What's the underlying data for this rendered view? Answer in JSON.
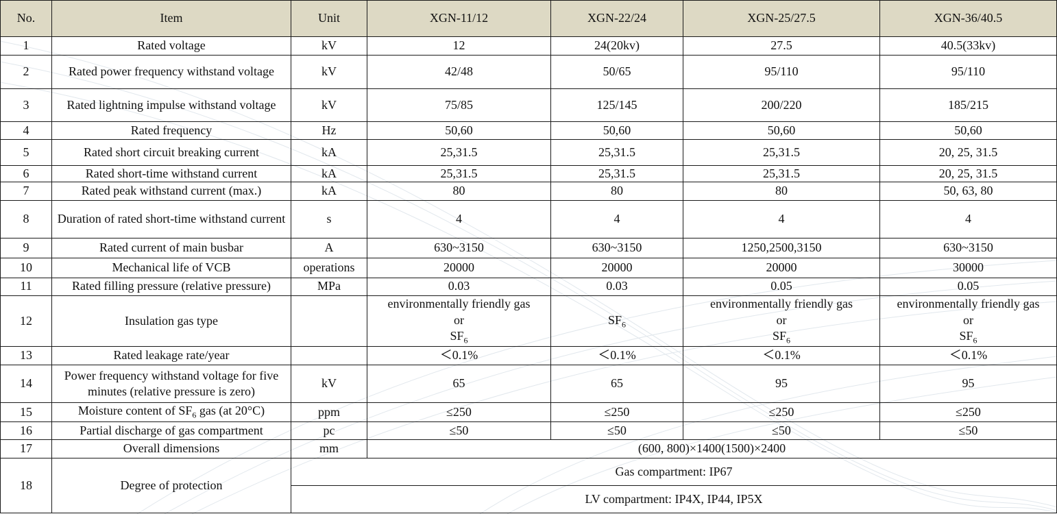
{
  "headers": [
    "No.",
    "Item",
    "Unit",
    "XGN-11/12",
    "XGN-22/24",
    "XGN-25/27.5",
    "XGN-36/40.5"
  ],
  "rows": [
    {
      "no": "1",
      "item": "Rated voltage",
      "unit": "kV",
      "v": [
        "12",
        "24(20kv)",
        "27.5",
        "40.5(33kv)"
      ]
    },
    {
      "no": "2",
      "item": "Rated power frequency withstand voltage",
      "unit": "kV",
      "v": [
        "42/48",
        "50/65",
        "95/110",
        "95/110"
      ]
    },
    {
      "no": "3",
      "item": "Rated lightning impulse withstand voltage",
      "unit": "kV",
      "v": [
        "75/85",
        "125/145",
        "200/220",
        "185/215"
      ]
    },
    {
      "no": "4",
      "item": "Rated frequency",
      "unit": "Hz",
      "v": [
        "50,60",
        "50,60",
        "50,60",
        "50,60"
      ]
    },
    {
      "no": "5",
      "item": "Rated short circuit breaking current",
      "unit": "kA",
      "v": [
        "25,31.5",
        "25,31.5",
        "25,31.5",
        "20, 25, 31.5"
      ]
    },
    {
      "no": "6",
      "item": "Rated short-time withstand current",
      "unit": "kA",
      "v": [
        "25,31.5",
        "25,31.5",
        "25,31.5",
        "20, 25, 31.5"
      ]
    },
    {
      "no": "7",
      "item": "Rated peak withstand current (max.)",
      "unit": "kA",
      "v": [
        "80",
        "80",
        "80",
        "50, 63, 80"
      ]
    },
    {
      "no": "8",
      "item": "Duration of rated short-time withstand current",
      "unit": "s",
      "v": [
        "4",
        "4",
        "4",
        "4"
      ]
    },
    {
      "no": "9",
      "item": "Rated current of main busbar",
      "unit": "A",
      "v": [
        "630~3150",
        "630~3150",
        "1250,2500,3150",
        "630~3150"
      ]
    },
    {
      "no": "10",
      "item": "Mechanical life of VCB",
      "unit": "operations",
      "v": [
        "20000",
        "20000",
        "20000",
        "30000"
      ]
    },
    {
      "no": "11",
      "item": "Rated filling pressure (relative pressure)",
      "unit": "MPa",
      "v": [
        "0.03",
        "0.03",
        "0.05",
        "0.05"
      ]
    }
  ],
  "row12": {
    "no": "12",
    "item": "Insulation gas type",
    "unit": "",
    "eco_line1": "environmentally friendly gas",
    "eco_line2": "or",
    "sf": "SF",
    "sf_sub": "6"
  },
  "rows_b": [
    {
      "no": "13",
      "item": "Rated leakage rate/year",
      "unit": "",
      "v": [
        "＜0.1%",
        "＜0.1%",
        "＜0.1%",
        "＜0.1%"
      ]
    },
    {
      "no": "14",
      "item": "Power frequency withstand voltage for five minutes (relative pressure is zero)",
      "unit": "kV",
      "v": [
        "65",
        "65",
        "95",
        "95"
      ]
    }
  ],
  "row15": {
    "no": "15",
    "item_pre": "Moisture content of SF",
    "item_sub": "6",
    "item_post": " gas (at 20°C)",
    "unit": "ppm",
    "v": [
      "≤250",
      "≤250",
      "≤250",
      "≤250"
    ]
  },
  "row16": {
    "no": "16",
    "item": "Partial discharge of gas compartment",
    "unit": "pc",
    "v": [
      "≤50",
      "≤50",
      "≤50",
      "≤50"
    ]
  },
  "row17": {
    "no": "17",
    "item": "Overall dimensions",
    "unit": "mm",
    "value": "(600, 800)×1400(1500)×2400"
  },
  "row18": {
    "no": "18",
    "item": "Degree of protection",
    "gas": "Gas compartment: IP67",
    "lv": "LV compartment: IP4X, IP44, IP5X"
  }
}
